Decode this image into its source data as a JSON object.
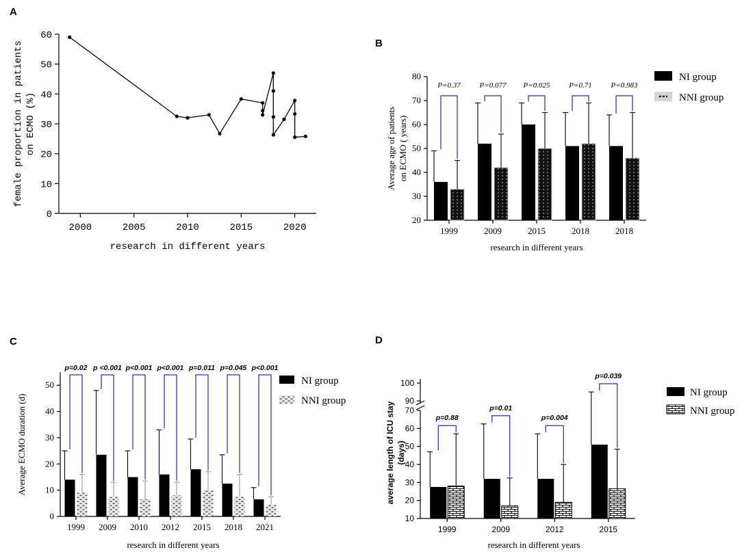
{
  "chart_data": [
    {
      "panel": "A",
      "type": "line",
      "xlabel": "research in different years",
      "ylabel_lines": [
        "female proportion in patients",
        "on ECMO (%)"
      ],
      "xlim": [
        1998,
        2022
      ],
      "ylim": [
        0,
        60
      ],
      "xticks": [
        "2000",
        "2005",
        "2010",
        "2015",
        "2020"
      ],
      "yticks": [
        "0",
        "10",
        "20",
        "30",
        "40",
        "50",
        "60"
      ],
      "x": [
        1999,
        2009,
        2010,
        2012,
        2013,
        2015,
        2017,
        2017,
        2017,
        2018,
        2018,
        2018,
        2018,
        2019,
        2020,
        2020,
        2020,
        2021
      ],
      "y": [
        59,
        32.5,
        32,
        33,
        26.7,
        38.3,
        37,
        34.4,
        33,
        47,
        41,
        32.3,
        26.3,
        31.5,
        37.8,
        33.3,
        25.5,
        25.8
      ]
    },
    {
      "panel": "B",
      "type": "bar",
      "xlabel": "research in different years",
      "ylabel_lines": [
        "Average age of patients",
        "on ECMO ( years)"
      ],
      "ylim": [
        20,
        80
      ],
      "yticks": [
        "20",
        "30",
        "40",
        "50",
        "60",
        "70",
        "80"
      ],
      "categories": [
        "1999",
        "2009",
        "2015",
        "2018",
        "2018"
      ],
      "p_values": [
        "P=0.37",
        "P=0.077",
        "P=0.025",
        "P=0.71",
        "P=0.983"
      ],
      "series": [
        {
          "name": "NI group",
          "values": [
            36,
            52,
            60,
            51,
            51
          ],
          "errors": [
            13,
            17,
            9,
            14,
            13
          ]
        },
        {
          "name": "NNI group",
          "values": [
            33,
            42,
            50,
            52,
            46
          ],
          "errors": [
            12,
            14,
            15,
            17,
            19
          ]
        }
      ]
    },
    {
      "panel": "C",
      "type": "bar",
      "xlabel": "research in different years",
      "ylabel": "Average ECMO duration (d)",
      "ylim": [
        0,
        55
      ],
      "yticks": [
        "0",
        "10",
        "20",
        "30",
        "40",
        "50"
      ],
      "categories": [
        "1999",
        "2009",
        "2010",
        "2012",
        "2015",
        "2018",
        "2021"
      ],
      "p_values": [
        "p=0.02",
        "p <0.001",
        "p<0.001",
        "p<0.001",
        "p=0.011",
        "p=0.045",
        "p<0.001"
      ],
      "series": [
        {
          "name": "NI group",
          "values": [
            14,
            23.5,
            15,
            16,
            18,
            12.5,
            6.5
          ],
          "errors": [
            11,
            24.5,
            10,
            17,
            11.5,
            11,
            4.5
          ]
        },
        {
          "name": "NNI group",
          "values": [
            9,
            7.5,
            6.5,
            8,
            10,
            7.5,
            4.5
          ],
          "errors": [
            7,
            5.5,
            7,
            5,
            7,
            8.5,
            3
          ]
        }
      ]
    },
    {
      "panel": "D",
      "type": "bar",
      "xlabel": "research in different years",
      "ylabel_lines": [
        "average length of ICU stay",
        "(days)"
      ],
      "ylim": [
        10,
        100
      ],
      "axis_break": [
        70,
        90
      ],
      "yticks": [
        "10",
        "20",
        "30",
        "40",
        "50",
        "60",
        "70",
        "90",
        "100"
      ],
      "categories": [
        "1999",
        "2009",
        "2012",
        "2015"
      ],
      "p_values": [
        "p=0.88",
        "p=0.01",
        "p=0.004",
        "p=0.039"
      ],
      "series": [
        {
          "name": "NI group",
          "values": [
            27.5,
            32,
            32,
            51
          ],
          "errors": [
            19.5,
            30.5,
            25,
            44
          ]
        },
        {
          "name": "NNI group",
          "values": [
            28,
            17,
            19,
            26.5
          ],
          "errors": [
            29,
            15.5,
            21,
            22
          ]
        }
      ]
    }
  ],
  "panel_labels": [
    "A",
    "B",
    "C",
    "D"
  ],
  "colors": {
    "ni_bar": "#000000",
    "nni_fill": "#d4d4d4",
    "bracket": "#2b2ba8",
    "axis": "#000000"
  }
}
